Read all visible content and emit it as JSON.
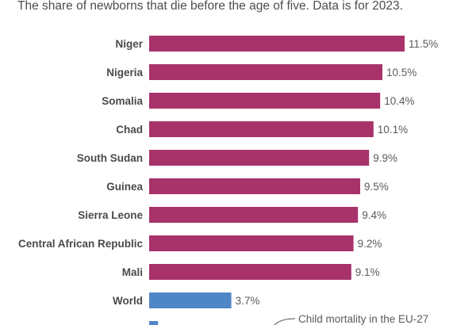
{
  "subtitle": "The share of newborns that die before the age of five. Data is for 2023.",
  "colors": {
    "highlight": "#a8326a",
    "world": "#4f86c6"
  },
  "chart_data": {
    "type": "bar",
    "orientation": "horizontal",
    "title": "",
    "subtitle": "The share of newborns that die before the age of five. Data is for 2023.",
    "xlabel": "",
    "ylabel": "",
    "unit": "%",
    "xlim": [
      0,
      11.5
    ],
    "grid": false,
    "legend": "none",
    "categories": [
      "Niger",
      "Nigeria",
      "Somalia",
      "Chad",
      "South Sudan",
      "Guinea",
      "Sierra Leone",
      "Central African Republic",
      "Mali",
      "World",
      ""
    ],
    "values": [
      11.5,
      10.5,
      10.4,
      10.1,
      9.9,
      9.5,
      9.4,
      9.2,
      9.1,
      3.7,
      0.4
    ],
    "labels": [
      "11.5%",
      "10.5%",
      "10.4%",
      "10.1%",
      "9.9%",
      "9.5%",
      "9.4%",
      "9.2%",
      "9.1%",
      "3.7%",
      ""
    ],
    "bar_colors": [
      "#a8326a",
      "#a8326a",
      "#a8326a",
      "#a8326a",
      "#a8326a",
      "#a8326a",
      "#a8326a",
      "#a8326a",
      "#a8326a",
      "#4f86c6",
      "#4f86c6"
    ],
    "annotation": "Child mortality in the EU-27"
  }
}
